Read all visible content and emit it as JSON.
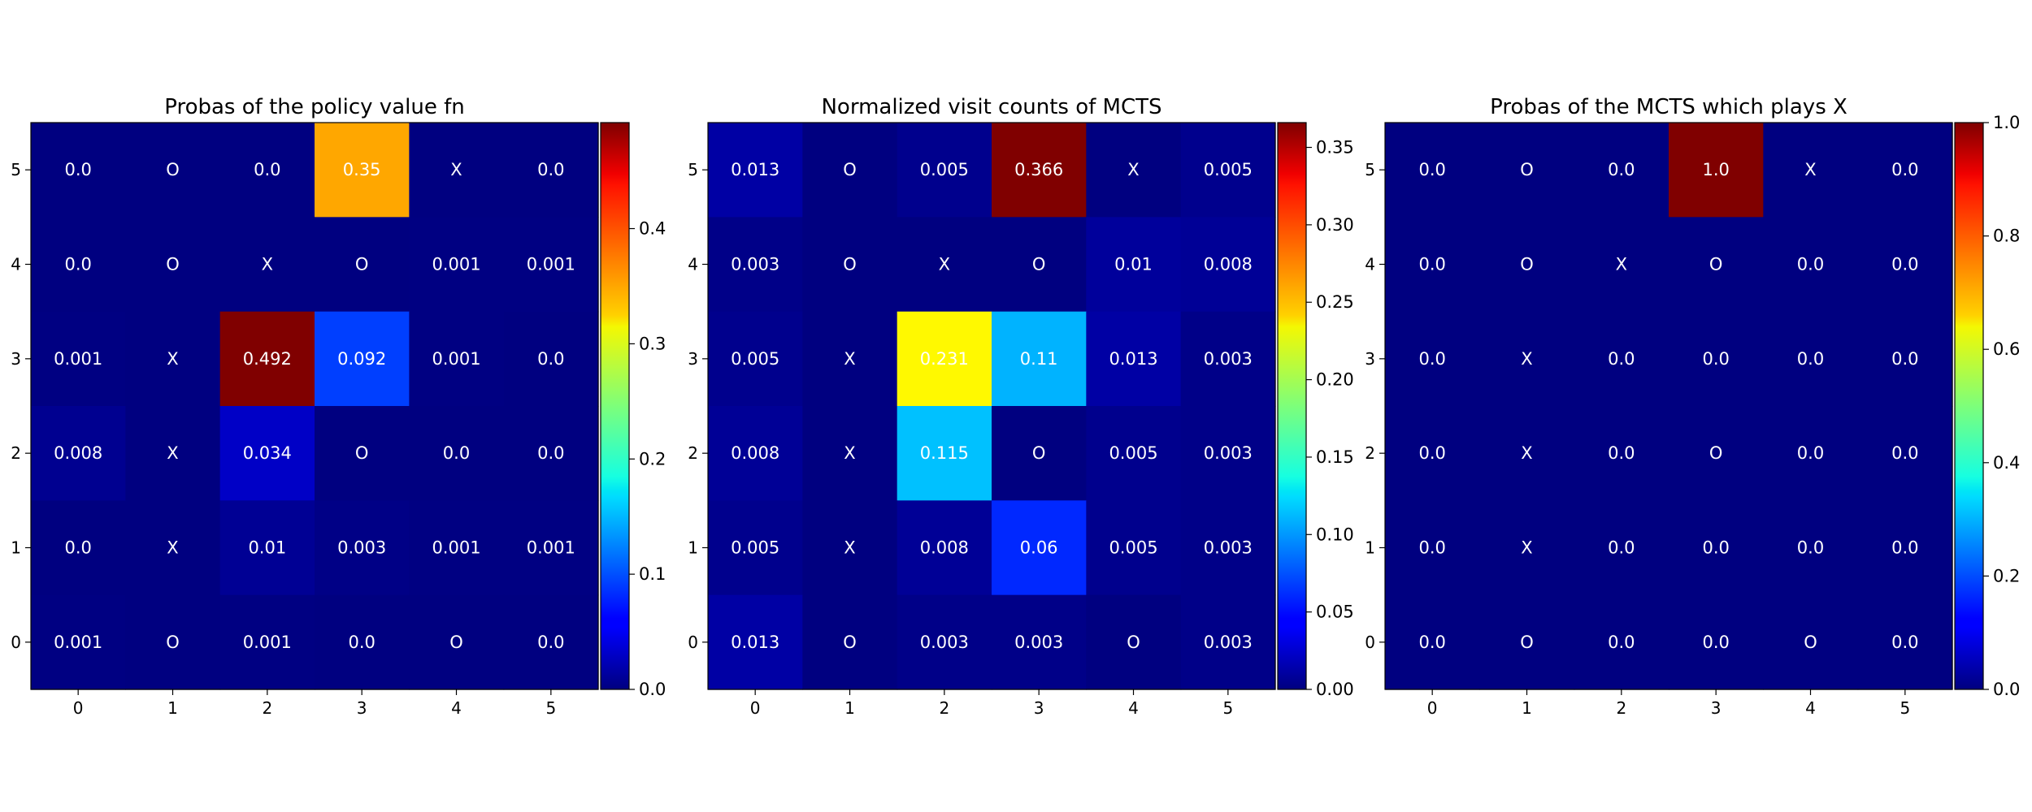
{
  "figure": {
    "width": 2500,
    "height": 1000
  },
  "colormap": "jet",
  "chart_data": [
    {
      "type": "heatmap",
      "title": "Probas of the policy value fn",
      "x_ticks": [
        "0",
        "1",
        "2",
        "3",
        "4",
        "5"
      ],
      "y_ticks": [
        "5",
        "4",
        "3",
        "2",
        "1",
        "0"
      ],
      "vmin": 0,
      "vmax": 0.492,
      "colorbar_ticks": [
        "0.0",
        "0.1",
        "0.2",
        "0.3",
        "0.4"
      ],
      "colorbar_tick_values": [
        0,
        0.1,
        0.2,
        0.3,
        0.4
      ],
      "values": [
        [
          0.0,
          0.0,
          0.0,
          0.35,
          0.0,
          0.0
        ],
        [
          0.0,
          0.0,
          0.0,
          0.0,
          0.001,
          0.001
        ],
        [
          0.001,
          0.0,
          0.492,
          0.092,
          0.001,
          0.0
        ],
        [
          0.008,
          0.0,
          0.034,
          0.0,
          0.0,
          0.0
        ],
        [
          0.0,
          0.0,
          0.01,
          0.003,
          0.001,
          0.001
        ],
        [
          0.001,
          0.0,
          0.001,
          0.0,
          0.0,
          0.0
        ]
      ],
      "labels": [
        [
          "0.0",
          "O",
          "0.0",
          "0.35",
          "X",
          "0.0"
        ],
        [
          "0.0",
          "O",
          "X",
          "O",
          "0.001",
          "0.001"
        ],
        [
          "0.001",
          "X",
          "0.492",
          "0.092",
          "0.001",
          "0.0"
        ],
        [
          "0.008",
          "X",
          "0.034",
          "O",
          "0.0",
          "0.0"
        ],
        [
          "0.0",
          "X",
          "0.01",
          "0.003",
          "0.001",
          "0.001"
        ],
        [
          "0.001",
          "O",
          "0.001",
          "0.0",
          "O",
          "0.0"
        ]
      ]
    },
    {
      "type": "heatmap",
      "title": "Normalized visit counts of MCTS",
      "x_ticks": [
        "0",
        "1",
        "2",
        "3",
        "4",
        "5"
      ],
      "y_ticks": [
        "5",
        "4",
        "3",
        "2",
        "1",
        "0"
      ],
      "vmin": 0,
      "vmax": 0.366,
      "colorbar_ticks": [
        "0.00",
        "0.05",
        "0.10",
        "0.15",
        "0.20",
        "0.25",
        "0.30",
        "0.35"
      ],
      "colorbar_tick_values": [
        0,
        0.05,
        0.1,
        0.15,
        0.2,
        0.25,
        0.3,
        0.35
      ],
      "values": [
        [
          0.013,
          0.0,
          0.005,
          0.366,
          0.0,
          0.005
        ],
        [
          0.003,
          0.0,
          0.0,
          0.0,
          0.01,
          0.008
        ],
        [
          0.005,
          0.0,
          0.231,
          0.11,
          0.013,
          0.003
        ],
        [
          0.008,
          0.0,
          0.115,
          0.0,
          0.005,
          0.003
        ],
        [
          0.005,
          0.0,
          0.008,
          0.06,
          0.005,
          0.003
        ],
        [
          0.013,
          0.0,
          0.003,
          0.003,
          0.0,
          0.003
        ]
      ],
      "labels": [
        [
          "0.013",
          "O",
          "0.005",
          "0.366",
          "X",
          "0.005"
        ],
        [
          "0.003",
          "O",
          "X",
          "O",
          "0.01",
          "0.008"
        ],
        [
          "0.005",
          "X",
          "0.231",
          "0.11",
          "0.013",
          "0.003"
        ],
        [
          "0.008",
          "X",
          "0.115",
          "O",
          "0.005",
          "0.003"
        ],
        [
          "0.005",
          "X",
          "0.008",
          "0.06",
          "0.005",
          "0.003"
        ],
        [
          "0.013",
          "O",
          "0.003",
          "0.003",
          "O",
          "0.003"
        ]
      ]
    },
    {
      "type": "heatmap",
      "title": "Probas of the MCTS which plays X",
      "x_ticks": [
        "0",
        "1",
        "2",
        "3",
        "4",
        "5"
      ],
      "y_ticks": [
        "5",
        "4",
        "3",
        "2",
        "1",
        "0"
      ],
      "vmin": 0,
      "vmax": 1.0,
      "colorbar_ticks": [
        "0.0",
        "0.2",
        "0.4",
        "0.6",
        "0.8",
        "1.0"
      ],
      "colorbar_tick_values": [
        0,
        0.2,
        0.4,
        0.6,
        0.8,
        1.0
      ],
      "values": [
        [
          0.0,
          0.0,
          0.0,
          1.0,
          0.0,
          0.0
        ],
        [
          0.0,
          0.0,
          0.0,
          0.0,
          0.0,
          0.0
        ],
        [
          0.0,
          0.0,
          0.0,
          0.0,
          0.0,
          0.0
        ],
        [
          0.0,
          0.0,
          0.0,
          0.0,
          0.0,
          0.0
        ],
        [
          0.0,
          0.0,
          0.0,
          0.0,
          0.0,
          0.0
        ],
        [
          0.0,
          0.0,
          0.0,
          0.0,
          0.0,
          0.0
        ]
      ],
      "labels": [
        [
          "0.0",
          "O",
          "0.0",
          "1.0",
          "X",
          "0.0"
        ],
        [
          "0.0",
          "O",
          "X",
          "O",
          "0.0",
          "0.0"
        ],
        [
          "0.0",
          "X",
          "0.0",
          "0.0",
          "0.0",
          "0.0"
        ],
        [
          "0.0",
          "X",
          "0.0",
          "O",
          "0.0",
          "0.0"
        ],
        [
          "0.0",
          "X",
          "0.0",
          "0.0",
          "0.0",
          "0.0"
        ],
        [
          "0.0",
          "O",
          "0.0",
          "0.0",
          "O",
          "0.0"
        ]
      ]
    }
  ]
}
